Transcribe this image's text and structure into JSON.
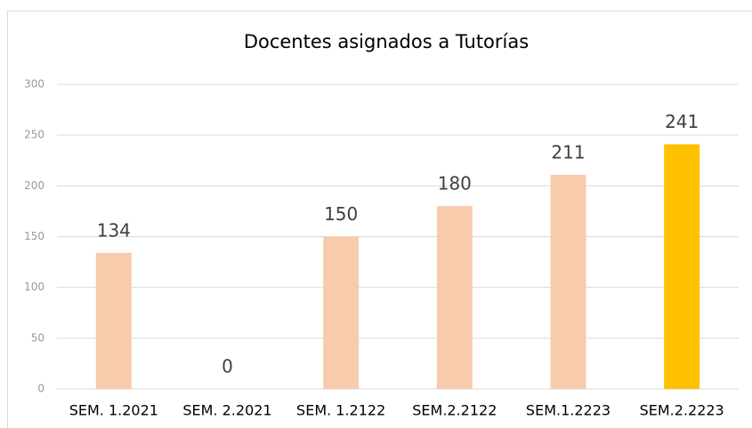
{
  "chart_data": {
    "type": "bar",
    "title": "Docentes asignados a Tutorías",
    "categories": [
      "SEM. 1.2021",
      "SEM. 2.2021",
      "SEM. 1.2122",
      "SEM.2.2122",
      "SEM.1.2223",
      "SEM.2.2223"
    ],
    "values": [
      134,
      0,
      150,
      180,
      211,
      241
    ],
    "colors": [
      "#f8cbad",
      "#f8cbad",
      "#f8cbad",
      "#f8cbad",
      "#f8cbad",
      "#ffc000"
    ],
    "ylim": [
      0,
      300
    ],
    "yticks": [
      0,
      50,
      100,
      150,
      200,
      250,
      300
    ],
    "grid": true
  }
}
